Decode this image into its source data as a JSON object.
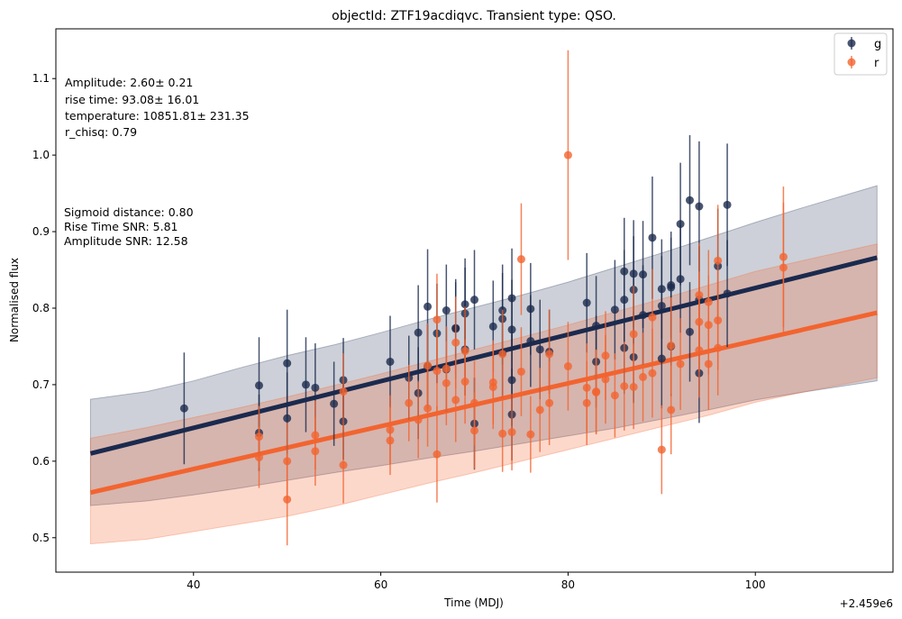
{
  "chart_data": {
    "type": "scatter",
    "title": "objectId: ZTF19acdiqvc. Transient type: QSO.",
    "xlabel": "Time (MDJ)",
    "ylabel": "Normalised flux",
    "x_offset_label": "+2.459e6",
    "xlim": [
      25.3,
      114.7
    ],
    "ylim": [
      0.455,
      1.165
    ],
    "x_ticks": [
      40,
      60,
      80,
      100
    ],
    "y_ticks": [
      0.5,
      0.6,
      0.7,
      0.8,
      0.9,
      1.0,
      1.1
    ],
    "grid": false,
    "legend_position": "top-right",
    "annotations_fit": [
      "Amplitude: 2.60± 0.21",
      "rise time: 93.08± 16.01",
      "temperature: 10851.81± 231.35",
      "r_chisq: 0.79"
    ],
    "annotations_stats": [
      "Sigmoid distance: 0.80",
      "Rise Time SNR: 5.81",
      "Amplitude SNR: 12.58"
    ],
    "series": [
      {
        "name": "g",
        "color": "#1b2a4e",
        "fit": {
          "x": [
            29,
            113
          ],
          "y": [
            0.61,
            0.866
          ]
        },
        "band": {
          "x": [
            29,
            35,
            40,
            45,
            50,
            55,
            60,
            65,
            70,
            75,
            80,
            85,
            90,
            95,
            100,
            105,
            113
          ],
          "upper": [
            0.681,
            0.691,
            0.705,
            0.722,
            0.738,
            0.752,
            0.768,
            0.785,
            0.801,
            0.817,
            0.834,
            0.853,
            0.872,
            0.892,
            0.912,
            0.931,
            0.96
          ],
          "lower": [
            0.542,
            0.548,
            0.556,
            0.565,
            0.575,
            0.585,
            0.594,
            0.604,
            0.613,
            0.623,
            0.633,
            0.643,
            0.655,
            0.667,
            0.68,
            0.69,
            0.705
          ]
        },
        "points": [
          {
            "x": 39,
            "y": 0.669,
            "e": 0.073
          },
          {
            "x": 47,
            "y": 0.699,
            "e": 0.063
          },
          {
            "x": 47,
            "y": 0.637,
            "e": 0.05
          },
          {
            "x": 50,
            "y": 0.728,
            "e": 0.07
          },
          {
            "x": 50,
            "y": 0.656,
            "e": 0.06
          },
          {
            "x": 52,
            "y": 0.7,
            "e": 0.062
          },
          {
            "x": 53,
            "y": 0.696,
            "e": 0.058
          },
          {
            "x": 55,
            "y": 0.675,
            "e": 0.055
          },
          {
            "x": 56,
            "y": 0.706,
            "e": 0.055
          },
          {
            "x": 56,
            "y": 0.652,
            "e": 0.05
          },
          {
            "x": 61,
            "y": 0.73,
            "e": 0.06
          },
          {
            "x": 63,
            "y": 0.709,
            "e": 0.055
          },
          {
            "x": 64,
            "y": 0.768,
            "e": 0.062
          },
          {
            "x": 64,
            "y": 0.689,
            "e": 0.06
          },
          {
            "x": 65,
            "y": 0.802,
            "e": 0.075
          },
          {
            "x": 65,
            "y": 0.724,
            "e": 0.055
          },
          {
            "x": 66,
            "y": 0.767,
            "e": 0.065
          },
          {
            "x": 67,
            "y": 0.797,
            "e": 0.06
          },
          {
            "x": 67,
            "y": 0.72,
            "e": 0.055
          },
          {
            "x": 68,
            "y": 0.773,
            "e": 0.065
          },
          {
            "x": 68,
            "y": 0.774,
            "e": 0.06
          },
          {
            "x": 69,
            "y": 0.805,
            "e": 0.06
          },
          {
            "x": 69,
            "y": 0.793,
            "e": 0.06
          },
          {
            "x": 69,
            "y": 0.746,
            "e": 0.06
          },
          {
            "x": 70,
            "y": 0.811,
            "e": 0.065
          },
          {
            "x": 70,
            "y": 0.649,
            "e": 0.06
          },
          {
            "x": 72,
            "y": 0.776,
            "e": 0.06
          },
          {
            "x": 73,
            "y": 0.797,
            "e": 0.06
          },
          {
            "x": 73,
            "y": 0.786,
            "e": 0.06
          },
          {
            "x": 73,
            "y": 0.742,
            "e": 0.06
          },
          {
            "x": 74,
            "y": 0.813,
            "e": 0.065
          },
          {
            "x": 74,
            "y": 0.772,
            "e": 0.065
          },
          {
            "x": 74,
            "y": 0.706,
            "e": 0.06
          },
          {
            "x": 74,
            "y": 0.661,
            "e": 0.06
          },
          {
            "x": 76,
            "y": 0.799,
            "e": 0.06
          },
          {
            "x": 76,
            "y": 0.757,
            "e": 0.06
          },
          {
            "x": 77,
            "y": 0.746,
            "e": 0.065
          },
          {
            "x": 78,
            "y": 0.743,
            "e": 0.055
          },
          {
            "x": 82,
            "y": 0.807,
            "e": 0.065
          },
          {
            "x": 83,
            "y": 0.777,
            "e": 0.065
          },
          {
            "x": 83,
            "y": 0.73,
            "e": 0.06
          },
          {
            "x": 85,
            "y": 0.798,
            "e": 0.065
          },
          {
            "x": 86,
            "y": 0.848,
            "e": 0.07
          },
          {
            "x": 86,
            "y": 0.811,
            "e": 0.065
          },
          {
            "x": 86,
            "y": 0.748,
            "e": 0.06
          },
          {
            "x": 87,
            "y": 0.845,
            "e": 0.07
          },
          {
            "x": 87,
            "y": 0.824,
            "e": 0.07
          },
          {
            "x": 87,
            "y": 0.736,
            "e": 0.06
          },
          {
            "x": 88,
            "y": 0.844,
            "e": 0.07
          },
          {
            "x": 88,
            "y": 0.791,
            "e": 0.065
          },
          {
            "x": 89,
            "y": 0.892,
            "e": 0.08
          },
          {
            "x": 90,
            "y": 0.825,
            "e": 0.065
          },
          {
            "x": 90,
            "y": 0.803,
            "e": 0.065
          },
          {
            "x": 90,
            "y": 0.734,
            "e": 0.065
          },
          {
            "x": 91,
            "y": 0.83,
            "e": 0.07
          },
          {
            "x": 91,
            "y": 0.827,
            "e": 0.065
          },
          {
            "x": 91,
            "y": 0.75,
            "e": 0.065
          },
          {
            "x": 92,
            "y": 0.91,
            "e": 0.08
          },
          {
            "x": 92,
            "y": 0.838,
            "e": 0.07
          },
          {
            "x": 93,
            "y": 0.941,
            "e": 0.085
          },
          {
            "x": 93,
            "y": 0.769,
            "e": 0.065
          },
          {
            "x": 94,
            "y": 0.933,
            "e": 0.085
          },
          {
            "x": 94,
            "y": 0.811,
            "e": 0.07
          },
          {
            "x": 94,
            "y": 0.715,
            "e": 0.065
          },
          {
            "x": 96,
            "y": 0.855,
            "e": 0.075
          },
          {
            "x": 97,
            "y": 0.935,
            "e": 0.08
          },
          {
            "x": 97,
            "y": 0.819,
            "e": 0.07
          }
        ]
      },
      {
        "name": "r",
        "color": "#f26430",
        "fit": {
          "x": [
            29,
            113
          ],
          "y": [
            0.559,
            0.794
          ]
        },
        "band": {
          "x": [
            29,
            35,
            40,
            45,
            50,
            55,
            60,
            65,
            70,
            75,
            80,
            85,
            90,
            95,
            100,
            105,
            113
          ],
          "upper": [
            0.63,
            0.644,
            0.657,
            0.67,
            0.684,
            0.699,
            0.714,
            0.73,
            0.746,
            0.762,
            0.778,
            0.795,
            0.812,
            0.83,
            0.848,
            0.862,
            0.884
          ],
          "lower": [
            0.492,
            0.498,
            0.508,
            0.518,
            0.528,
            0.541,
            0.556,
            0.571,
            0.585,
            0.6,
            0.615,
            0.63,
            0.645,
            0.66,
            0.677,
            0.69,
            0.709
          ]
        },
        "points": [
          {
            "x": 47,
            "y": 0.632,
            "e": 0.04
          },
          {
            "x": 47,
            "y": 0.605,
            "e": 0.04
          },
          {
            "x": 50,
            "y": 0.6,
            "e": 0.05
          },
          {
            "x": 50,
            "y": 0.55,
            "e": 0.06
          },
          {
            "x": 53,
            "y": 0.634,
            "e": 0.045
          },
          {
            "x": 53,
            "y": 0.613,
            "e": 0.045
          },
          {
            "x": 56,
            "y": 0.691,
            "e": 0.05
          },
          {
            "x": 56,
            "y": 0.595,
            "e": 0.05
          },
          {
            "x": 61,
            "y": 0.641,
            "e": 0.045
          },
          {
            "x": 61,
            "y": 0.627,
            "e": 0.045
          },
          {
            "x": 63,
            "y": 0.676,
            "e": 0.05
          },
          {
            "x": 64,
            "y": 0.654,
            "e": 0.05
          },
          {
            "x": 65,
            "y": 0.725,
            "e": 0.055
          },
          {
            "x": 65,
            "y": 0.669,
            "e": 0.05
          },
          {
            "x": 66,
            "y": 0.785,
            "e": 0.06
          },
          {
            "x": 66,
            "y": 0.718,
            "e": 0.055
          },
          {
            "x": 66,
            "y": 0.609,
            "e": 0.063
          },
          {
            "x": 67,
            "y": 0.721,
            "e": 0.055
          },
          {
            "x": 67,
            "y": 0.702,
            "e": 0.055
          },
          {
            "x": 68,
            "y": 0.755,
            "e": 0.06
          },
          {
            "x": 68,
            "y": 0.68,
            "e": 0.055
          },
          {
            "x": 69,
            "y": 0.744,
            "e": 0.058
          },
          {
            "x": 69,
            "y": 0.704,
            "e": 0.055
          },
          {
            "x": 70,
            "y": 0.676,
            "e": 0.055
          },
          {
            "x": 70,
            "y": 0.64,
            "e": 0.05
          },
          {
            "x": 72,
            "y": 0.703,
            "e": 0.055
          },
          {
            "x": 72,
            "y": 0.697,
            "e": 0.055
          },
          {
            "x": 73,
            "y": 0.74,
            "e": 0.058
          },
          {
            "x": 73,
            "y": 0.636,
            "e": 0.05
          },
          {
            "x": 74,
            "y": 0.638,
            "e": 0.05
          },
          {
            "x": 75,
            "y": 0.864,
            "e": 0.073
          },
          {
            "x": 75,
            "y": 0.717,
            "e": 0.058
          },
          {
            "x": 76,
            "y": 0.635,
            "e": 0.05
          },
          {
            "x": 77,
            "y": 0.667,
            "e": 0.055
          },
          {
            "x": 78,
            "y": 0.74,
            "e": 0.058
          },
          {
            "x": 78,
            "y": 0.676,
            "e": 0.055
          },
          {
            "x": 80,
            "y": 1.0,
            "e": 0.137
          },
          {
            "x": 80,
            "y": 0.724,
            "e": 0.058
          },
          {
            "x": 82,
            "y": 0.696,
            "e": 0.058
          },
          {
            "x": 82,
            "y": 0.676,
            "e": 0.055
          },
          {
            "x": 83,
            "y": 0.691,
            "e": 0.055
          },
          {
            "x": 83,
            "y": 0.69,
            "e": 0.055
          },
          {
            "x": 84,
            "y": 0.738,
            "e": 0.058
          },
          {
            "x": 84,
            "y": 0.707,
            "e": 0.058
          },
          {
            "x": 85,
            "y": 0.686,
            "e": 0.055
          },
          {
            "x": 86,
            "y": 0.698,
            "e": 0.058
          },
          {
            "x": 87,
            "y": 0.766,
            "e": 0.063
          },
          {
            "x": 87,
            "y": 0.697,
            "e": 0.055
          },
          {
            "x": 88,
            "y": 0.71,
            "e": 0.058
          },
          {
            "x": 89,
            "y": 0.788,
            "e": 0.063
          },
          {
            "x": 89,
            "y": 0.715,
            "e": 0.058
          },
          {
            "x": 90,
            "y": 0.615,
            "e": 0.058
          },
          {
            "x": 91,
            "y": 0.751,
            "e": 0.063
          },
          {
            "x": 91,
            "y": 0.667,
            "e": 0.058
          },
          {
            "x": 92,
            "y": 0.727,
            "e": 0.06
          },
          {
            "x": 94,
            "y": 0.817,
            "e": 0.068
          },
          {
            "x": 94,
            "y": 0.782,
            "e": 0.065
          },
          {
            "x": 94,
            "y": 0.745,
            "e": 0.062
          },
          {
            "x": 95,
            "y": 0.808,
            "e": 0.068
          },
          {
            "x": 95,
            "y": 0.778,
            "e": 0.065
          },
          {
            "x": 95,
            "y": 0.727,
            "e": 0.06
          },
          {
            "x": 96,
            "y": 0.862,
            "e": 0.073
          },
          {
            "x": 96,
            "y": 0.784,
            "e": 0.065
          },
          {
            "x": 96,
            "y": 0.748,
            "e": 0.062
          },
          {
            "x": 103,
            "y": 0.867,
            "e": 0.092
          },
          {
            "x": 103,
            "y": 0.853,
            "e": 0.085
          }
        ]
      }
    ]
  }
}
